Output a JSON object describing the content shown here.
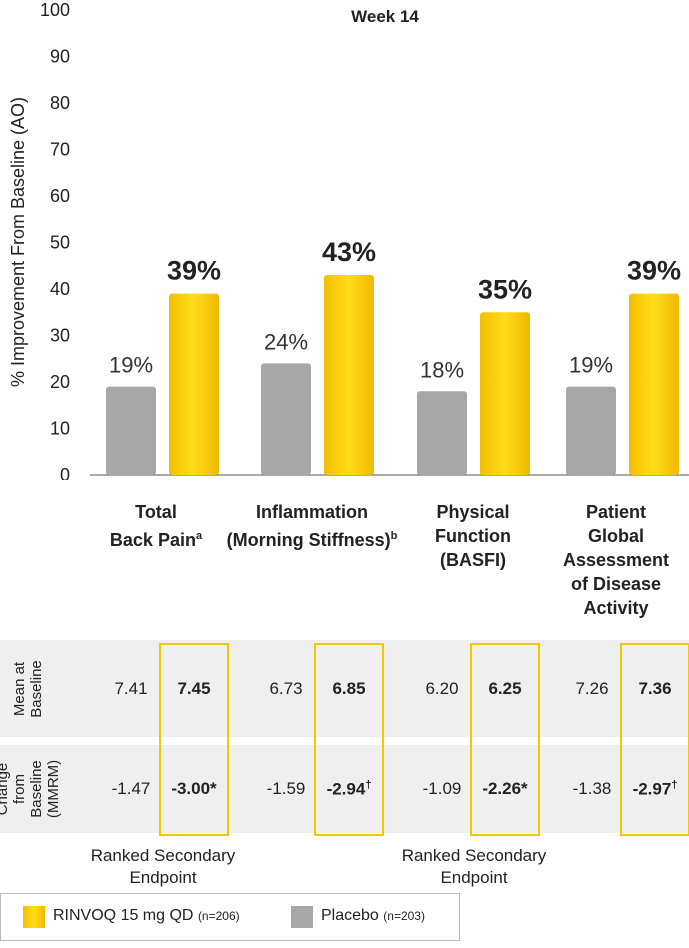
{
  "chart_data": {
    "type": "bar",
    "title": "Week 14",
    "ylabel": "% Improvement From Baseline (AO)",
    "ylim": [
      0,
      100
    ],
    "yticks": [
      0,
      10,
      20,
      30,
      40,
      50,
      60,
      70,
      80,
      90,
      100
    ],
    "categories": [
      {
        "lines": [
          "Total",
          "Back Pain"
        ],
        "sup": "a"
      },
      {
        "lines": [
          "Inflammation",
          "(Morning Stiffness)"
        ],
        "sup": "b"
      },
      {
        "lines": [
          "Physical",
          "Function",
          "(BASFI)"
        ],
        "sup": ""
      },
      {
        "lines": [
          "Patient",
          "Global",
          "Assessment",
          "of Disease",
          "Activity"
        ],
        "sup": ""
      }
    ],
    "series": [
      {
        "name": "Placebo",
        "values": [
          19,
          24,
          18,
          19
        ],
        "labels": [
          "19%",
          "24%",
          "18%",
          "19%"
        ],
        "color": "#a7a7a7"
      },
      {
        "name": "RINVOQ 15 mg QD",
        "values": [
          39,
          43,
          35,
          39
        ],
        "labels": [
          "39%",
          "43%",
          "35%",
          "39%"
        ],
        "color": "#f5c400"
      }
    ]
  },
  "table": {
    "rows": [
      {
        "label_lines": [
          "Mean at",
          "Baseline"
        ],
        "cells": [
          {
            "text": "7.41",
            "sup": "",
            "bold": false
          },
          {
            "text": "7.45",
            "sup": "",
            "bold": true
          },
          {
            "text": "6.73",
            "sup": "",
            "bold": false
          },
          {
            "text": "6.85",
            "sup": "",
            "bold": true
          },
          {
            "text": "6.20",
            "sup": "",
            "bold": false
          },
          {
            "text": "6.25",
            "sup": "",
            "bold": true
          },
          {
            "text": "7.26",
            "sup": "",
            "bold": false
          },
          {
            "text": "7.36",
            "sup": "",
            "bold": true
          }
        ]
      },
      {
        "label_lines": [
          "Change",
          "from",
          "Baseline",
          "(MMRM)"
        ],
        "cells": [
          {
            "text": "-1.47",
            "sup": "",
            "bold": false
          },
          {
            "text": "-3.00*",
            "sup": "",
            "bold": true
          },
          {
            "text": "-1.59",
            "sup": "",
            "bold": false
          },
          {
            "text": "-2.94",
            "sup": "†",
            "bold": true
          },
          {
            "text": "-1.09",
            "sup": "",
            "bold": false
          },
          {
            "text": "-2.26*",
            "sup": "",
            "bold": true
          },
          {
            "text": "-1.38",
            "sup": "",
            "bold": false
          },
          {
            "text": "-2.97",
            "sup": "†",
            "bold": true
          }
        ]
      }
    ],
    "ranked_notes": [
      {
        "lines": [
          "Ranked Secondary",
          "Endpoint"
        ]
      },
      {
        "lines": [
          "Ranked Secondary",
          "Endpoint"
        ]
      }
    ]
  },
  "legend": {
    "items": [
      {
        "label": "RINVOQ 15 mg QD",
        "note": "(n=206)",
        "color": "#f5c400"
      },
      {
        "label": "Placebo",
        "note": "(n=203)",
        "color": "#a7a7a7"
      }
    ]
  }
}
